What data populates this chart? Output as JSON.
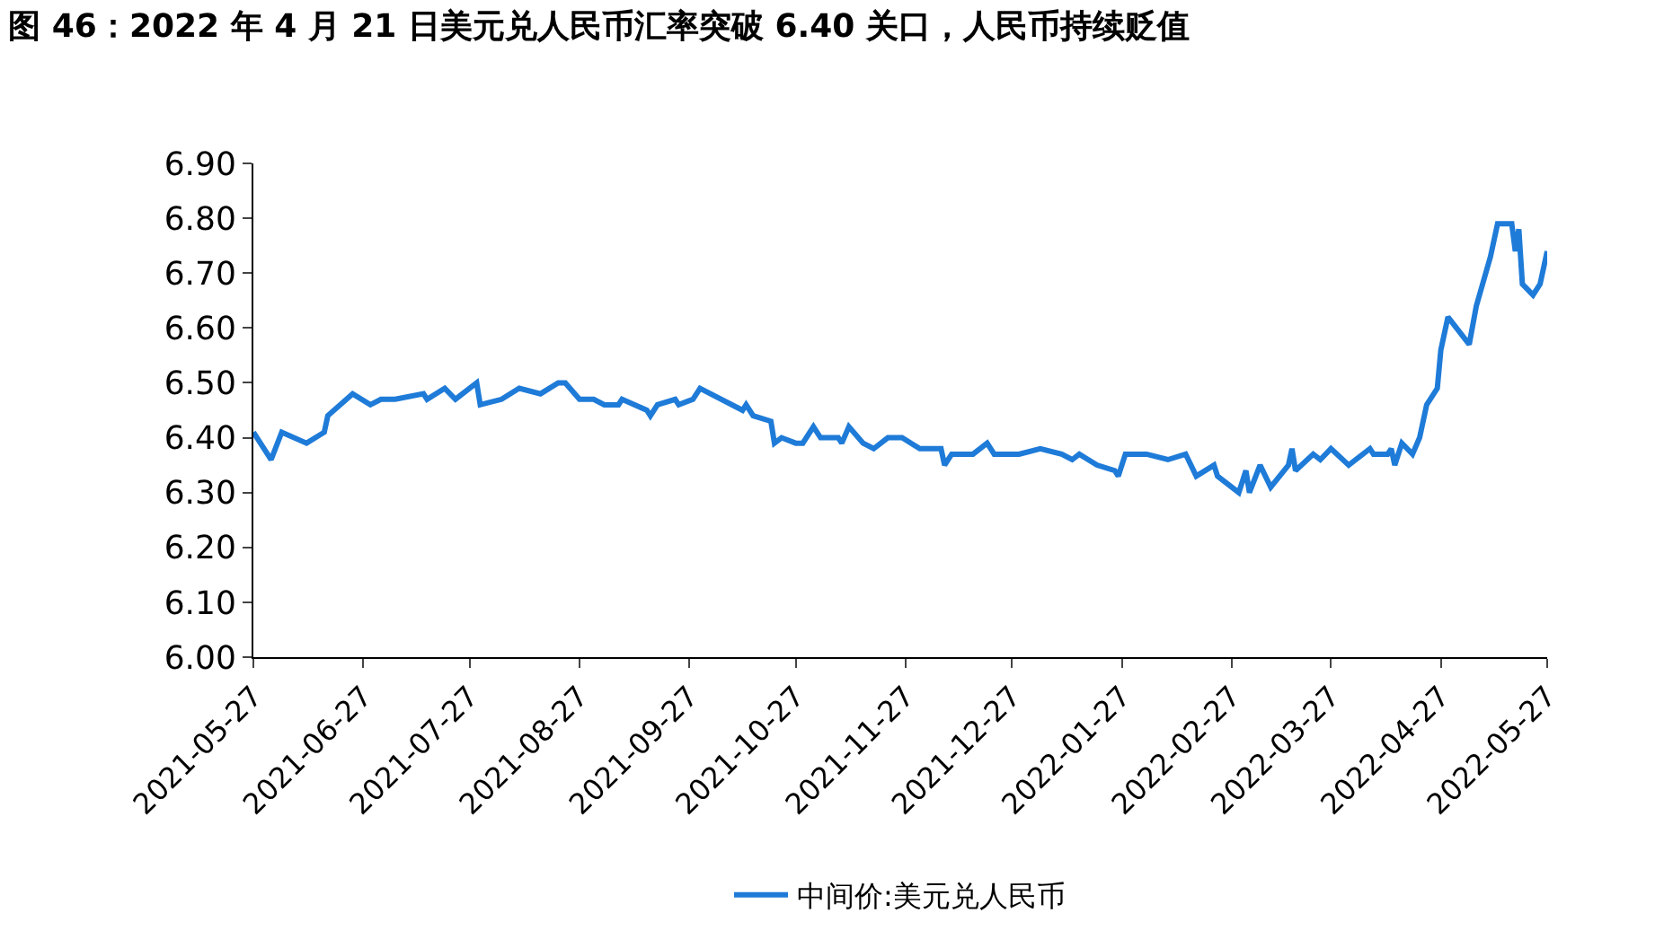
{
  "chart_data": {
    "type": "line",
    "title": "图 46：2022 年 4 月 21 日美元兑人民币汇率突破 6.40 关口，人民币持续贬值",
    "x": [
      "2021-05-27",
      "2021-06-01",
      "2021-06-04",
      "2021-06-11",
      "2021-06-16",
      "2021-06-17",
      "2021-06-24",
      "2021-06-29",
      "2021-07-02",
      "2021-07-06",
      "2021-07-14",
      "2021-07-15",
      "2021-07-20",
      "2021-07-23",
      "2021-07-29",
      "2021-07-30",
      "2021-08-05",
      "2021-08-10",
      "2021-08-16",
      "2021-08-21",
      "2021-08-23",
      "2021-08-27",
      "2021-08-31",
      "2021-09-03",
      "2021-09-07",
      "2021-09-08",
      "2021-09-15",
      "2021-09-16",
      "2021-09-18",
      "2021-09-23",
      "2021-09-24",
      "2021-09-28",
      "2021-09-30",
      "2021-10-12",
      "2021-10-13",
      "2021-10-15",
      "2021-10-20",
      "2021-10-21",
      "2021-10-23",
      "2021-10-27",
      "2021-10-29",
      "2021-11-01",
      "2021-11-03",
      "2021-11-08",
      "2021-11-09",
      "2021-11-11",
      "2021-11-15",
      "2021-11-18",
      "2021-11-22",
      "2021-11-26",
      "2021-12-01",
      "2021-12-07",
      "2021-12-08",
      "2021-12-10",
      "2021-12-16",
      "2021-12-20",
      "2021-12-22",
      "2021-12-29",
      "2022-01-04",
      "2022-01-10",
      "2022-01-13",
      "2022-01-15",
      "2022-01-20",
      "2022-01-25",
      "2022-01-26",
      "2022-01-28",
      "2022-02-03",
      "2022-02-09",
      "2022-02-14",
      "2022-02-17",
      "2022-02-22",
      "2022-02-23",
      "2022-03-01",
      "2022-03-03",
      "2022-03-04",
      "2022-03-07",
      "2022-03-10",
      "2022-03-15",
      "2022-03-16",
      "2022-03-17",
      "2022-03-22",
      "2022-03-24",
      "2022-03-27",
      "2022-04-01",
      "2022-04-07",
      "2022-04-08",
      "2022-04-12",
      "2022-04-13",
      "2022-04-14",
      "2022-04-16",
      "2022-04-19",
      "2022-04-21",
      "2022-04-23",
      "2022-04-26",
      "2022-04-27",
      "2022-04-29",
      "2022-05-05",
      "2022-05-07",
      "2022-05-11",
      "2022-05-13",
      "2022-05-17",
      "2022-05-18",
      "2022-05-19",
      "2022-05-20",
      "2022-05-23",
      "2022-05-25",
      "2022-05-27"
    ],
    "series": [
      {
        "name": "中间价:美元兑人民币",
        "color": "#1f7bd8",
        "values": [
          6.41,
          6.36,
          6.41,
          6.39,
          6.41,
          6.44,
          6.48,
          6.46,
          6.47,
          6.47,
          6.48,
          6.47,
          6.49,
          6.47,
          6.5,
          6.46,
          6.47,
          6.49,
          6.48,
          6.5,
          6.5,
          6.47,
          6.47,
          6.46,
          6.46,
          6.47,
          6.45,
          6.44,
          6.46,
          6.47,
          6.46,
          6.47,
          6.49,
          6.45,
          6.46,
          6.44,
          6.43,
          6.39,
          6.4,
          6.39,
          6.39,
          6.42,
          6.4,
          6.4,
          6.39,
          6.42,
          6.39,
          6.38,
          6.4,
          6.4,
          6.38,
          6.38,
          6.35,
          6.37,
          6.37,
          6.39,
          6.37,
          6.37,
          6.38,
          6.37,
          6.36,
          6.37,
          6.35,
          6.34,
          6.33,
          6.37,
          6.37,
          6.36,
          6.37,
          6.33,
          6.35,
          6.33,
          6.3,
          6.34,
          6.3,
          6.35,
          6.31,
          6.35,
          6.38,
          6.34,
          6.37,
          6.36,
          6.38,
          6.35,
          6.38,
          6.37,
          6.37,
          6.38,
          6.35,
          6.39,
          6.37,
          6.4,
          6.46,
          6.49,
          6.56,
          6.62,
          6.57,
          6.64,
          6.73,
          6.79,
          6.79,
          6.74,
          6.78,
          6.68,
          6.66,
          6.68,
          6.74
        ]
      }
    ],
    "xlim": [
      "2021-05-27",
      "2022-05-27"
    ],
    "xticks": [
      "2021-05-27",
      "2021-06-27",
      "2021-07-27",
      "2021-08-27",
      "2021-09-27",
      "2021-10-27",
      "2021-11-27",
      "2021-12-27",
      "2022-01-27",
      "2022-02-27",
      "2022-03-27",
      "2022-04-27",
      "2022-05-27"
    ],
    "ylim": [
      6.0,
      6.9
    ],
    "yticks": [
      {
        "value": 6.0,
        "label": "6.00"
      },
      {
        "value": 6.1,
        "label": "6.10"
      },
      {
        "value": 6.2,
        "label": "6.20"
      },
      {
        "value": 6.3,
        "label": "6.30"
      },
      {
        "value": 6.4,
        "label": "6.40"
      },
      {
        "value": 6.5,
        "label": "6.50"
      },
      {
        "value": 6.6,
        "label": "6.60"
      },
      {
        "value": 6.7,
        "label": "6.70"
      },
      {
        "value": 6.8,
        "label": "6.80"
      },
      {
        "value": 6.9,
        "label": "6.90"
      }
    ],
    "legend": "bottom",
    "marker": "none",
    "line_style": "solid"
  }
}
